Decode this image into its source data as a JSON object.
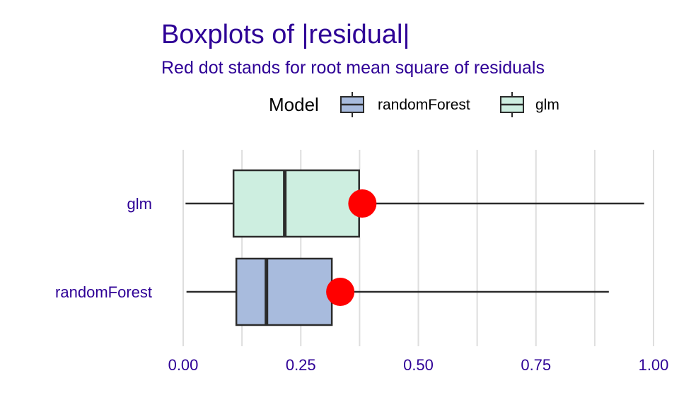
{
  "chart_data": {
    "type": "boxplot",
    "title": "Boxplots of |residual|",
    "subtitle": "Red dot stands for root mean square of residuals",
    "legend": {
      "title": "Model",
      "placement": "top",
      "entries": [
        {
          "label": "randomForest",
          "color": "#a8bbdd"
        },
        {
          "label": "glm",
          "color": "#cdeee0"
        }
      ]
    },
    "categories": [
      "glm",
      "randomForest"
    ],
    "series": [
      {
        "name": "glm",
        "color": "#cdeee0",
        "min": 0.005,
        "q1": 0.107,
        "median": 0.216,
        "q3": 0.374,
        "max": 0.98,
        "rmse": 0.381
      },
      {
        "name": "randomForest",
        "color": "#a8bbdd",
        "min": 0.007,
        "q1": 0.113,
        "median": 0.177,
        "q3": 0.316,
        "max": 0.905,
        "rmse": 0.334
      }
    ],
    "x_ticks": [
      "0.00",
      "0.25",
      "0.50",
      "0.75",
      "1.00"
    ],
    "x_tick_values": [
      0,
      0.25,
      0.5,
      0.75,
      1.0
    ],
    "xlim": [
      0,
      1.0
    ],
    "xlabel": "",
    "ylabel": "",
    "grid": true,
    "colors": {
      "text": "#2e0096",
      "rmse_dot": "#ff0000",
      "grid": "#dedede",
      "box_stroke": "#2b2b2b"
    }
  }
}
